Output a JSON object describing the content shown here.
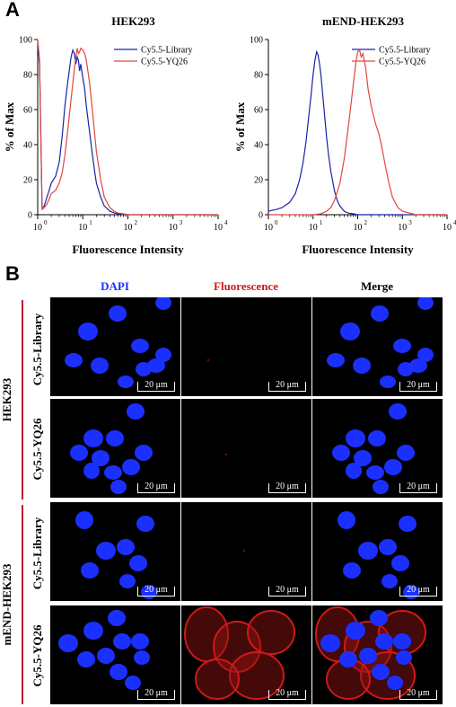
{
  "panel_a_label": "A",
  "panel_b_label": "B",
  "colors": {
    "library": "#1a22a8",
    "yq26": "#e0473d",
    "dapi": "#1b30ff",
    "fluor": "#d01818"
  },
  "chart_data": [
    {
      "type": "line",
      "title": "HEK293",
      "xlabel": "Fluorescence Intensity",
      "ylabel": "% of Max",
      "xscale": "log",
      "xlim": [
        1,
        10000
      ],
      "ylim": [
        0,
        100
      ],
      "yticks": [
        "0",
        "20",
        "40",
        "60",
        "80",
        "100"
      ],
      "legend_position": "top-right",
      "series": [
        {
          "name": "Cy5.5-Library",
          "color": "#1a22a8",
          "x": [
            1,
            1.1,
            1.25,
            1.4,
            1.6,
            1.8,
            2,
            2.5,
            3,
            3.5,
            4,
            4.5,
            5,
            5.5,
            6,
            6.5,
            7,
            7.5,
            8,
            8.5,
            9,
            10,
            11,
            12,
            14,
            16,
            18,
            20,
            25,
            30,
            40,
            50,
            60,
            80,
            100,
            200,
            1000,
            10000
          ],
          "y": [
            100,
            85,
            4,
            5,
            10,
            14,
            18,
            22,
            30,
            45,
            62,
            73,
            82,
            90,
            94,
            92,
            86,
            90,
            88,
            82,
            86,
            78,
            72,
            62,
            48,
            36,
            26,
            18,
            10,
            5,
            2,
            1,
            0.5,
            0,
            0,
            0,
            0,
            0
          ]
        },
        {
          "name": "Cy5.5-YQ26",
          "color": "#e0473d",
          "x": [
            1,
            1.1,
            1.25,
            1.4,
            1.6,
            1.8,
            2,
            2.5,
            3,
            3.5,
            4,
            4.5,
            5,
            5.5,
            6,
            6.5,
            7,
            7.5,
            8,
            8.5,
            9,
            10,
            11,
            12,
            14,
            16,
            18,
            20,
            25,
            30,
            40,
            50,
            60,
            80,
            100,
            200,
            1000,
            10000
          ],
          "y": [
            100,
            88,
            3,
            4,
            6,
            9,
            12,
            14,
            18,
            24,
            34,
            45,
            56,
            66,
            75,
            83,
            90,
            95,
            92,
            93,
            95,
            94,
            92,
            88,
            76,
            62,
            48,
            36,
            20,
            10,
            4,
            2,
            1,
            0.5,
            0,
            0,
            0,
            0
          ]
        }
      ]
    },
    {
      "type": "line",
      "title": "mEND-HEK293",
      "xlabel": "Fluorescence Intensity",
      "ylabel": "% of Max",
      "xscale": "log",
      "xlim": [
        1,
        10000
      ],
      "ylim": [
        0,
        100
      ],
      "yticks": [
        "0",
        "20",
        "40",
        "60",
        "80",
        "100"
      ],
      "legend_position": "top-right",
      "series": [
        {
          "name": "Cy5.5-Library",
          "color": "#1a22a8",
          "x": [
            1,
            1.5,
            2,
            3,
            4,
            5,
            6,
            7,
            8,
            9,
            10,
            11,
            12,
            13,
            14,
            15,
            16,
            18,
            20,
            22,
            25,
            28,
            30,
            35,
            40,
            50,
            60,
            80,
            100,
            200,
            1000,
            10000
          ],
          "y": [
            2,
            3,
            4,
            7,
            12,
            20,
            30,
            42,
            56,
            68,
            80,
            88,
            93,
            91,
            86,
            80,
            72,
            58,
            45,
            35,
            25,
            18,
            14,
            8,
            5,
            2,
            1,
            0.5,
            0,
            0,
            0,
            0
          ]
        },
        {
          "name": "Cy5.5-YQ26",
          "color": "#e0473d",
          "x": [
            1,
            10,
            15,
            20,
            25,
            30,
            40,
            50,
            60,
            70,
            80,
            90,
            100,
            110,
            120,
            130,
            150,
            170,
            200,
            250,
            300,
            350,
            400,
            500,
            600,
            800,
            1000,
            2000,
            10000
          ],
          "y": [
            0,
            0,
            0.5,
            2,
            4,
            8,
            18,
            32,
            48,
            62,
            75,
            86,
            93,
            94,
            90,
            92,
            84,
            72,
            62,
            52,
            46,
            38,
            30,
            18,
            10,
            4,
            2,
            0,
            0
          ]
        }
      ]
    }
  ],
  "panel_b": {
    "columns": [
      {
        "label": "DAPI",
        "color": "#1b30ff"
      },
      {
        "label": "Fluorescence",
        "color": "#d01818"
      },
      {
        "label": "Merge",
        "color": "#000000"
      }
    ],
    "rows": [
      "Cy5.5-Library",
      "Cy5.5-YQ26",
      "Cy5.5-Library",
      "Cy5.5-YQ26"
    ],
    "groups": [
      "HEK293",
      "mEND-HEK293"
    ],
    "scale_bar": "20 μm"
  }
}
